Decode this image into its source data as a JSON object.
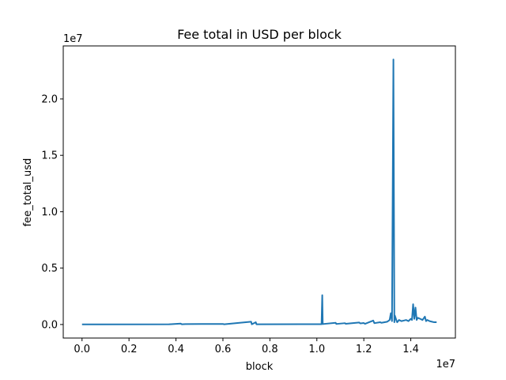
{
  "chart_data": {
    "type": "line",
    "title": "Fee total in USD per block",
    "xlabel": "block",
    "ylabel": "fee_total_usd",
    "x_offset_label": "1e7",
    "y_offset_label": "1e7",
    "xlim": [
      -800000,
      15900000
    ],
    "ylim": [
      -1200000,
      24700000
    ],
    "x_ticks": [
      0,
      2000000,
      4000000,
      6000000,
      8000000,
      10000000,
      12000000,
      14000000
    ],
    "x_tick_labels": [
      "0.0",
      "0.2",
      "0.4",
      "0.6",
      "0.8",
      "1.0",
      "1.2",
      "1.4"
    ],
    "y_ticks": [
      0,
      5000000,
      10000000,
      15000000,
      20000000
    ],
    "y_tick_labels": [
      "0.0",
      "0.5",
      "1.0",
      "1.5",
      "2.0"
    ],
    "grid": false,
    "color": "#1f77b4",
    "series": [
      {
        "x": [
          0,
          3700000,
          3800000,
          4200000,
          4250000,
          4400000,
          6000000,
          6050000,
          7200000,
          7230000,
          7400000,
          7430000,
          10200000,
          10230000,
          10250000,
          10300000,
          10800000,
          10830000,
          11200000,
          11230000,
          11800000,
          11850000,
          12000000,
          12050000,
          12400000,
          12450000,
          12700000,
          12750000,
          13000000,
          13100000,
          13150000,
          13200000,
          13260000,
          13300000,
          13320000,
          13400000,
          13420000,
          13500000,
          13600000,
          13700000,
          13800000,
          13900000,
          14000000,
          14050000,
          14100000,
          14150000,
          14200000,
          14250000,
          14300000,
          14400000,
          14500000,
          14600000,
          14650000,
          14700000,
          14800000,
          14900000,
          15000000,
          15100000
        ],
        "y": [
          10000,
          20000,
          30000,
          80000,
          20000,
          40000,
          50000,
          20000,
          250000,
          20000,
          200000,
          20000,
          30000,
          2600000,
          40000,
          50000,
          150000,
          50000,
          120000,
          60000,
          180000,
          100000,
          130000,
          60000,
          350000,
          120000,
          200000,
          150000,
          250000,
          400000,
          1000000,
          300000,
          23500000,
          200000,
          800000,
          300000,
          200000,
          400000,
          300000,
          350000,
          400000,
          300000,
          500000,
          400000,
          1800000,
          500000,
          1500000,
          400000,
          600000,
          500000,
          400000,
          700000,
          300000,
          400000,
          300000,
          250000,
          200000,
          200000
        ]
      }
    ]
  }
}
